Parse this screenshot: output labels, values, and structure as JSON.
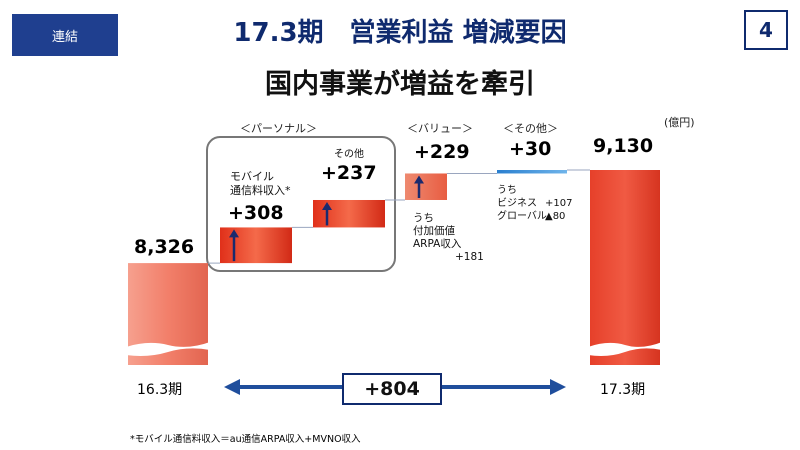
{
  "header": {
    "tag_label": "連結",
    "title": "17.3期　営業利益 増減要因",
    "page_number": "4",
    "subtitle": "国内事業が増益を牽引"
  },
  "groups": {
    "personal": "＜パーソナル＞",
    "value": "＜バリュー＞",
    "other": "＜その他＞"
  },
  "annotations": {
    "mobile_label": "モバイル\n通信料収入*",
    "other_small": "その他",
    "value_note": "うち\n付加価値\nARPA収入\n　　　　+181",
    "other_note_head": "うち",
    "other_note_rows": [
      {
        "name": "ビジネス",
        "value": "+107"
      },
      {
        "name": "グローバル",
        "value": "▲80"
      }
    ]
  },
  "footnote": "*モバイル通信料収入＝au通信ARPA収入+MVNO収入",
  "colors": {
    "navy": "#0f2a6e",
    "start_end_bar": "#f0826e",
    "increase_bar": "#e8361e",
    "other_bar": "#2e8fd6",
    "arrow": "#1f4e9c"
  },
  "chart_data": {
    "type": "bar",
    "subtype": "waterfall",
    "unit": "(億円)",
    "categories": [
      "16.3期",
      "モバイル通信料収入",
      "その他",
      "バリュー",
      "その他",
      "17.3期"
    ],
    "base_value": 8326,
    "steps": [
      {
        "group": "パーソナル",
        "label": "モバイル通信料収入",
        "delta": 308,
        "display": "+308"
      },
      {
        "group": "パーソナル",
        "label": "その他",
        "delta": 237,
        "display": "+237"
      },
      {
        "group": "バリュー",
        "label": "バリュー",
        "delta": 229,
        "display": "+229"
      },
      {
        "group": "その他",
        "label": "その他",
        "delta": 30,
        "display": "+30"
      }
    ],
    "start": {
      "label": "16.3期",
      "value": 8326,
      "display": "8,326"
    },
    "end": {
      "label": "17.3期",
      "value": 9130,
      "display": "9,130"
    },
    "total_change": {
      "value": 804,
      "display": "+804"
    },
    "axis_break": true
  }
}
